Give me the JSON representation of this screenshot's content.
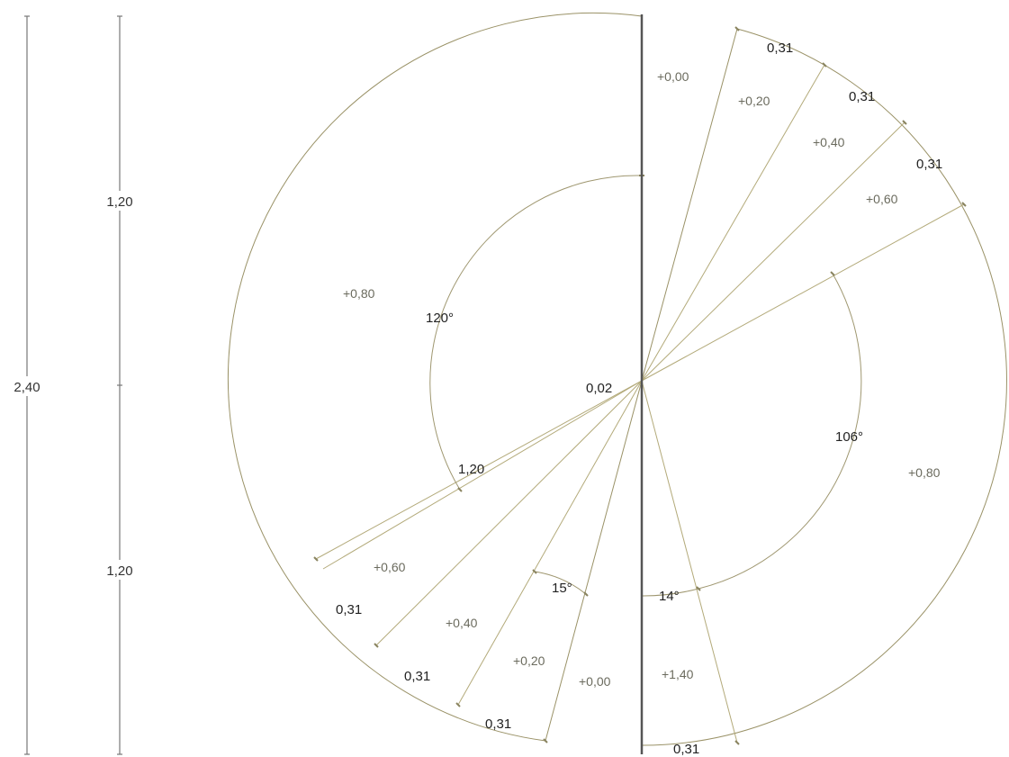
{
  "colors": {
    "fill": "#ddd095",
    "stroke": "#9a9267",
    "post": "#555555",
    "text": "#333333"
  },
  "dimensions": {
    "total": "2,40",
    "upper": "1,20",
    "lower": "1,20"
  },
  "labels": {
    "center_gap": "0,02",
    "angle_left": "120°",
    "angle_right": "106°",
    "angle_small_left": "15°",
    "angle_small_right": "14°",
    "radius_left": "1,20",
    "top_center_level": "+0,00",
    "bottom_center_level": "+0,00",
    "left_landing_level": "+0,80",
    "right_landing_level": "+0,80",
    "bottom_right_level": "+1,40",
    "left_steps": [
      "+0,60",
      "+0,40",
      "+0,20"
    ],
    "left_treads": [
      "0,31",
      "0,31",
      "0,31"
    ],
    "right_steps": [
      "+0,20",
      "+0,40",
      "+0,60"
    ],
    "right_treads": [
      "0,31",
      "0,31",
      "0,31"
    ],
    "bottom_right_tread": "0,31"
  }
}
